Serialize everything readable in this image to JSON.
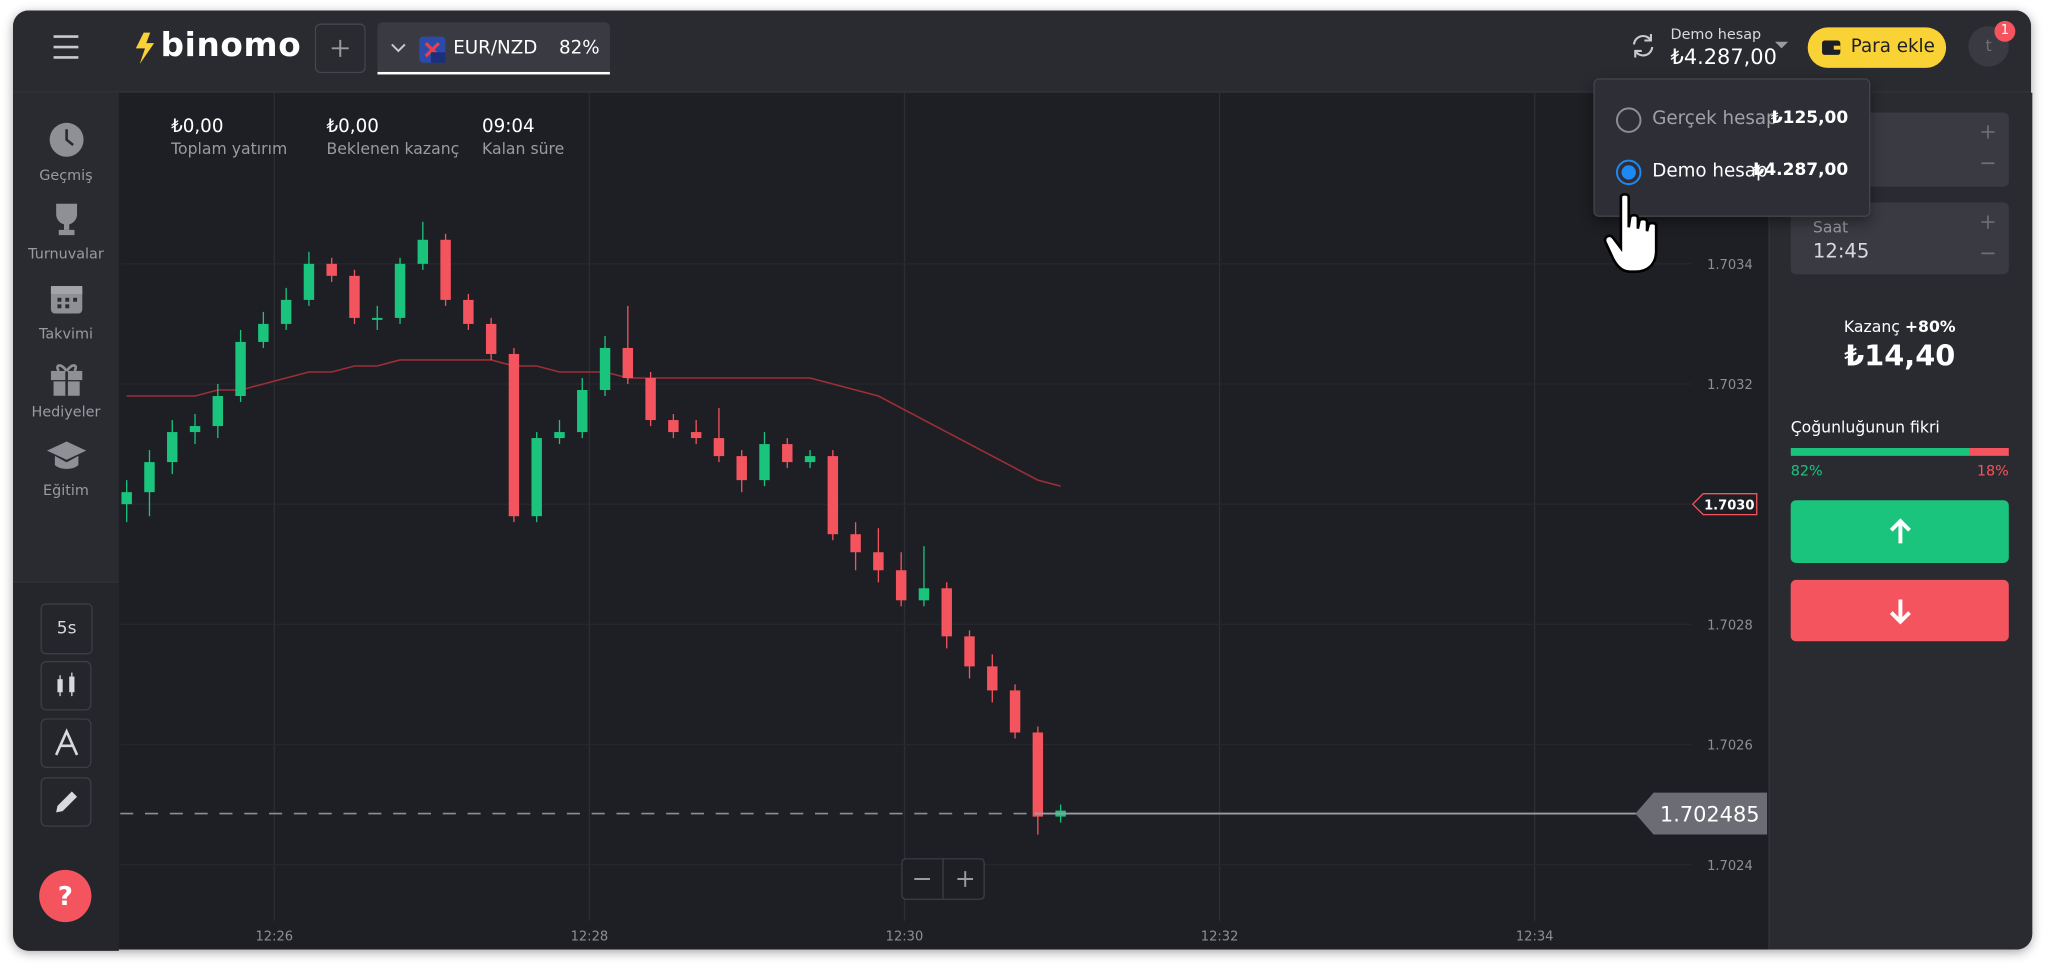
{
  "header": {
    "logo": "binomo",
    "asset": "EUR/NZD",
    "asset_payout": "82%",
    "account_label": "Demo hesap",
    "balance": "₺4.287,00",
    "add_funds": "Para ekle",
    "notifications": "1",
    "avatar": "t"
  },
  "sidebar": {
    "items": [
      "Geçmiş",
      "Turnuvalar",
      "Takvimi",
      "Hediyeler",
      "Eğitim"
    ],
    "timeframe": "5s",
    "help": "?"
  },
  "stats": [
    {
      "value": "₺0,00",
      "label": "Toplam yatırım"
    },
    {
      "value": "₺0,00",
      "label": "Beklenen kazanç"
    },
    {
      "value": "09:04",
      "label": "Kalan süre"
    }
  ],
  "chart_data": {
    "type": "candlestick",
    "open": [
      1.703,
      1.70302,
      1.70307,
      1.70312,
      1.70313,
      1.70318,
      1.70327,
      1.7033,
      1.70334,
      1.7034,
      1.70338,
      1.70331,
      1.70331,
      1.7034,
      1.70344,
      1.70334,
      1.7033,
      1.70325,
      1.70298,
      1.70311,
      1.70312,
      1.70319,
      1.70326,
      1.70321,
      1.70314,
      1.70312,
      1.70311,
      1.70308,
      1.70304,
      1.7031,
      1.70307,
      1.70308,
      1.70295,
      1.70292,
      1.70289,
      1.70284,
      1.70286,
      1.70278,
      1.70273,
      1.70269,
      1.70262,
      1.70248
    ],
    "high": [
      1.70304,
      1.70309,
      1.70314,
      1.70315,
      1.7032,
      1.70329,
      1.70332,
      1.70336,
      1.70342,
      1.70341,
      1.70339,
      1.70333,
      1.70341,
      1.70347,
      1.70345,
      1.70335,
      1.70331,
      1.70326,
      1.70312,
      1.70314,
      1.70321,
      1.70328,
      1.70333,
      1.70322,
      1.70315,
      1.70314,
      1.70316,
      1.70309,
      1.70312,
      1.70311,
      1.70309,
      1.70309,
      1.70297,
      1.70296,
      1.70292,
      1.70293,
      1.70287,
      1.70279,
      1.70275,
      1.7027,
      1.70263,
      1.7025
    ],
    "low": [
      1.70297,
      1.70298,
      1.70305,
      1.7031,
      1.70311,
      1.70317,
      1.70326,
      1.70329,
      1.70333,
      1.70337,
      1.7033,
      1.70329,
      1.7033,
      1.70339,
      1.70333,
      1.70329,
      1.70324,
      1.70297,
      1.70297,
      1.7031,
      1.70311,
      1.70318,
      1.7032,
      1.70313,
      1.70311,
      1.7031,
      1.70307,
      1.70302,
      1.70303,
      1.70306,
      1.70306,
      1.70294,
      1.70289,
      1.70287,
      1.70283,
      1.70283,
      1.70276,
      1.70271,
      1.70267,
      1.70261,
      1.70245,
      1.70247
    ],
    "close": [
      1.70302,
      1.70307,
      1.70312,
      1.70313,
      1.70318,
      1.70327,
      1.7033,
      1.70334,
      1.7034,
      1.70338,
      1.70331,
      1.70331,
      1.7034,
      1.70344,
      1.70334,
      1.7033,
      1.70325,
      1.70298,
      1.70311,
      1.70312,
      1.70319,
      1.70326,
      1.70321,
      1.70314,
      1.70312,
      1.70311,
      1.70308,
      1.70304,
      1.7031,
      1.70307,
      1.70308,
      1.70295,
      1.70292,
      1.70289,
      1.70284,
      1.70286,
      1.70278,
      1.70273,
      1.70269,
      1.70262,
      1.70248,
      1.70249
    ],
    "moving_average": [
      1.70318,
      1.70318,
      1.70318,
      1.70318,
      1.70319,
      1.70319,
      1.7032,
      1.70321,
      1.70322,
      1.70322,
      1.70323,
      1.70323,
      1.70324,
      1.70324,
      1.70324,
      1.70324,
      1.70324,
      1.70323,
      1.70323,
      1.70322,
      1.70322,
      1.70322,
      1.70321,
      1.70321,
      1.70321,
      1.70321,
      1.70321,
      1.70321,
      1.70321,
      1.70321,
      1.70321,
      1.7032,
      1.70319,
      1.70318,
      1.70316,
      1.70314,
      1.70312,
      1.7031,
      1.70308,
      1.70306,
      1.70304,
      1.70303
    ],
    "up_color": "#1bc47d",
    "down_color": "#f4545e",
    "ma_color": "#9e2f36",
    "ylim": [
      1.7023,
      1.7037
    ],
    "yticks": [
      1.7024,
      1.7026,
      1.7028,
      {
        "value": 1.703,
        "label": "1.7030"
      },
      1.7032,
      1.7034
    ],
    "xticks": [
      "12:26",
      "12:28",
      "12:30",
      "12:32",
      "12:34"
    ],
    "current_price": 1.702485,
    "price_marker": {
      "value": 1.703,
      "label": "1.7030"
    },
    "grid": true
  },
  "trade_panel": {
    "time_label": "Saat",
    "time": "12:45",
    "profit_label": "Kazanç",
    "profit_rate": "+80%",
    "profit": "₺14,40",
    "sentiment_title": "Çoğunluğunun fikri",
    "sentiment": {
      "values": [
        82,
        18
      ],
      "value_labels": [
        "82%",
        "18%"
      ],
      "colors": [
        "#1bc47d",
        "#f4545e"
      ]
    }
  },
  "account_menu": {
    "accounts": [
      {
        "name": "Gerçek hesap",
        "balance": "₺125,00",
        "selected": false
      },
      {
        "name": "Demo hesap",
        "balance": "₺4.287,00",
        "selected": true
      }
    ]
  }
}
